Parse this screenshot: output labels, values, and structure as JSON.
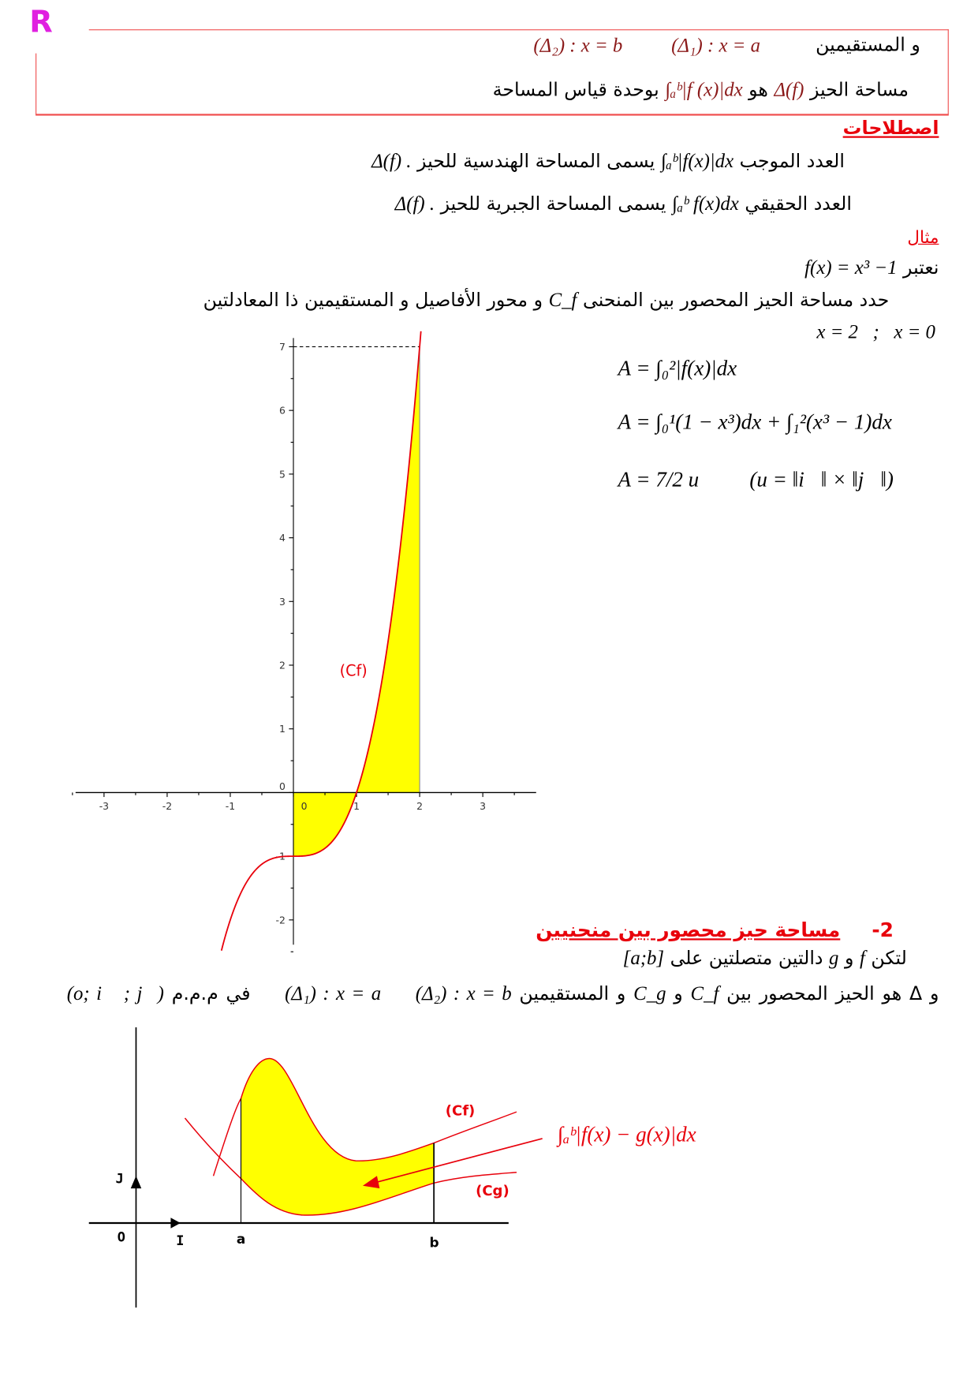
{
  "logo": "R",
  "box": {
    "line1_text": "و المستقيمين",
    "line1_delta1": "(Δ₁) : x = a",
    "line1_delta2": "(Δ₂) : x = b",
    "line2_a": "مساحة الحيز",
    "line2_delta": "Δ(f)",
    "line2_b": "هو",
    "line2_integral": "∫ₐᵇ|f (x)|dx",
    "line2_c": "بوحدة قياس المساحة"
  },
  "terms": {
    "heading": "اصطلاحات",
    "l1_a": "العدد الموجب",
    "l1_int": "∫ₐᵇ|f(x)|dx",
    "l1_b": "يسمى المساحة الهندسية للحيز",
    "l1_delta": "Δ(f) .",
    "l2_a": "العدد الحقيقي",
    "l2_int": "∫ₐᵇ f(x)dx",
    "l2_b": "يسمى المساحة الجبرية للحيز",
    "l2_delta": "Δ(f) ."
  },
  "example": {
    "heading": "مثال",
    "consider": "نعتبر",
    "func": "f(x) = x³ −1",
    "task_a": "حدد مساحة الحيز المحصور بين المنحنى",
    "task_cf": "C_f",
    "task_b": "و محور الأفاصيل و المستقيمين ذا المعادلتين",
    "bounds": "x = 2   ;   x = 0",
    "eq1": "A = ∫₀²|f(x)|dx",
    "eq2": "A = ∫₀¹(1 − x³)dx + ∫₁²(x³ − 1)dx",
    "eq3": "A = 7/2 u",
    "eq3_unit": "(u = ‖i⃗‖ × ‖j⃗‖)"
  },
  "chart_data": {
    "type": "line",
    "function": "x^3 - 1",
    "curve_label": "(Cf)",
    "shaded_interval": [
      0,
      2
    ],
    "xlim": [
      -3.4,
      3.8
    ],
    "ylim": [
      -2.4,
      7.1
    ],
    "x_ticks": [
      "-3",
      "-2",
      "-1",
      "0",
      "1",
      "2",
      "3"
    ],
    "y_ticks": [
      "-2",
      "-1",
      "0",
      "1",
      "2",
      "3",
      "4",
      "5",
      "6",
      "7"
    ],
    "fill_color": "#ffff00",
    "curve_color": "#e8000b"
  },
  "section2": {
    "number": "-2",
    "heading": "مساحة حيز محصور بين منحنيين",
    "l1_a": "لتكن",
    "l1_f": "f",
    "l1_and": "و",
    "l1_g": "g",
    "l1_b": "دالتين متصلتين على",
    "l1_int": "[a;b]",
    "l2_a": "و Δ هو الحيز المحصور بين",
    "l2_cf": "C_f",
    "l2_and": "و",
    "l2_cg": "C_g",
    "l2_b": "و المستقيمين",
    "l2_d1": "(Δ₁) : x = a",
    "l2_d2": "(Δ₂) : x = b",
    "l2_c": "في م.م.م",
    "l2_frame": "(o; i⃗ ; j⃗)"
  },
  "diagram2": {
    "cf_label": "(Cf)",
    "cg_label": "(Cg)",
    "formula": "∫ₐᵇ|f(x) − g(x)|dx",
    "o": "O",
    "i": "I",
    "j": "J",
    "a": "a",
    "b": "b"
  }
}
